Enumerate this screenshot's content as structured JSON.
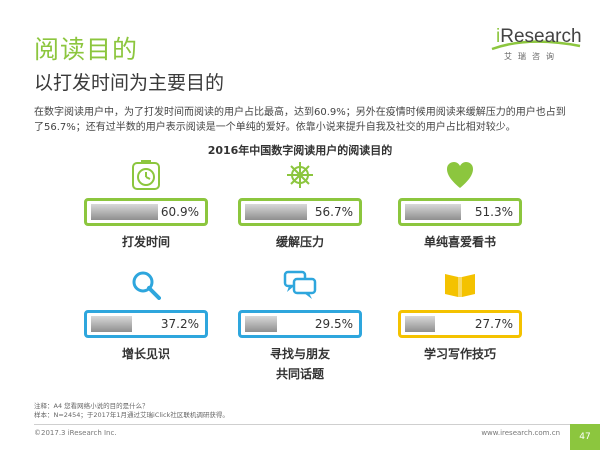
{
  "header": {
    "title": "阅读目的",
    "subtitle": "以打发时间为主要目的"
  },
  "logo": {
    "brand_prefix": "i",
    "brand_rest": "Research",
    "tagline": "艾瑞咨询"
  },
  "description": "在数字阅读用户中，为了打发时间而阅读的用户占比最高，达到60.9%；另外在疫情时候用阅读来缓解压力的用户也占到了56.7%；还有过半数的用户表示阅读是一个单纯的爱好。依靠小说来提升自我及社交的用户占比相对较少。",
  "colors": {
    "green": "#8cc63e",
    "blue": "#2ea6dd",
    "yellow": "#f4c200"
  },
  "chart_data": {
    "type": "bar",
    "title": "2016年中国数字阅读用户的阅读目的",
    "categories": [
      "打发时间",
      "缓解压力",
      "单纯喜爱看书",
      "增长见识",
      "寻找与朋友共同话题",
      "学习写作技巧"
    ],
    "values": [
      60.9,
      56.7,
      51.3,
      37.2,
      29.5,
      27.7
    ],
    "labels": [
      "60.9%",
      "56.7%",
      "51.3%",
      "37.2%",
      "29.5%",
      "27.7%"
    ],
    "display_lines": [
      [
        "打发时间"
      ],
      [
        "缓解压力"
      ],
      [
        "单纯喜爱看书"
      ],
      [
        "增长见识"
      ],
      [
        "寻找与朋友",
        "共同话题"
      ],
      [
        "学习写作技巧"
      ]
    ],
    "icons": [
      "clock-icon",
      "compass-icon",
      "heart-icon",
      "magnifier-icon",
      "chat-bubbles-icon",
      "open-book-icon"
    ],
    "colors": [
      "#8cc63e",
      "#8cc63e",
      "#8cc63e",
      "#2ea6dd",
      "#2ea6dd",
      "#f4c200"
    ],
    "ylim": [
      0,
      100
    ]
  },
  "footer": {
    "note_line1": "注释：A4 您看网络小说的目的是什么？",
    "note_line2": "样本：N=2454；于2017年1月通过艾瑞iClick社区联机调研获得。",
    "copyright": "©2017.3 iResearch Inc.",
    "website": "www.iresearch.com.cn",
    "page_number": "47"
  }
}
